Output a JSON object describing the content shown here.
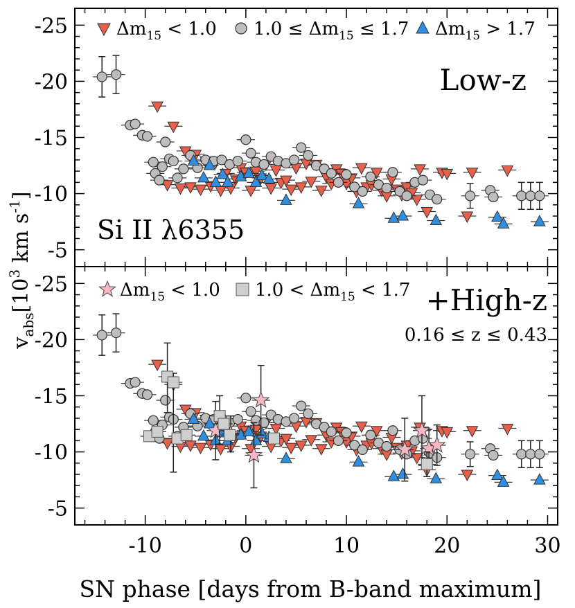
{
  "figure": {
    "ylabel": "v",
    "ylabel_sub": "abs",
    "ylabel_unit": "[10",
    "ylabel_unit_sup": "3",
    "ylabel_unit_rest": " km s",
    "ylabel_unit_sup2": "-1",
    "ylabel_unit_end": "]",
    "xlabel": "SN phase [days from B-band maximum]"
  },
  "chart_data": [
    {
      "type": "scatter",
      "panel": "top",
      "title": "Low-z",
      "annotation": "Si II λ6355",
      "xlim": [
        -17,
        31
      ],
      "ylim": [
        -3.5,
        -26.5
      ],
      "x_ticks": [
        -10,
        0,
        10,
        20,
        30
      ],
      "y_ticks": [
        -25,
        -20,
        -15,
        -10,
        -5
      ],
      "y_tick_labels": [
        "-25",
        "-20",
        "-15",
        "-10",
        "-5"
      ],
      "legend": [
        {
          "marker": "triangle-down",
          "color": "#e8604a",
          "text": "Δm",
          "sub": "15",
          "rest": " < 1.0"
        },
        {
          "marker": "circle",
          "color": "#bdbdbd",
          "text": "1.0 ≤ Δm",
          "sub": "15",
          "rest": " ≤ 1.7"
        },
        {
          "marker": "triangle-up",
          "color": "#2e8fe0",
          "text": "Δm",
          "sub": "15",
          "rest": " > 1.7"
        }
      ],
      "series": [
        {
          "name": "Δm15 < 1.0",
          "marker": "triangle-down",
          "color": "#e8604a",
          "points": [
            [
              -8.8,
              -17.8
            ],
            [
              -7.8,
              -10.8
            ],
            [
              -7.2,
              -16.0
            ],
            [
              -6.5,
              -10.5
            ],
            [
              -6.0,
              -13.8
            ],
            [
              -5.5,
              -10.6
            ],
            [
              -5.0,
              -13.5
            ],
            [
              -4.5,
              -10.4
            ],
            [
              -4.0,
              -12.9
            ],
            [
              -3.5,
              -10.7
            ],
            [
              -3.0,
              -12.8
            ],
            [
              -2.5,
              -10.3
            ],
            [
              -2.0,
              -11.8
            ],
            [
              -1.5,
              -10.5
            ],
            [
              -1.0,
              -11.3
            ],
            [
              -0.5,
              -12.3
            ],
            [
              0.0,
              -11.9
            ],
            [
              0.5,
              -10.3
            ],
            [
              1.0,
              -12.0
            ],
            [
              1.5,
              -11.4
            ],
            [
              2.0,
              -12.6
            ],
            [
              2.5,
              -10.5
            ],
            [
              3.0,
              -12.1
            ],
            [
              3.5,
              -11.0
            ],
            [
              4.0,
              -11.2
            ],
            [
              4.5,
              -10.4
            ],
            [
              5.0,
              -12.3
            ],
            [
              5.5,
              -10.6
            ],
            [
              6.0,
              -12.7
            ],
            [
              6.5,
              -11.1
            ],
            [
              7.0,
              -12.6
            ],
            [
              7.5,
              -10.3
            ],
            [
              8.0,
              -11.5
            ],
            [
              8.5,
              -10.9
            ],
            [
              9.0,
              -12.2
            ],
            [
              9.5,
              -11.8
            ],
            [
              10.0,
              -10.9
            ],
            [
              10.5,
              -11.4
            ],
            [
              11.0,
              -10.2
            ],
            [
              11.5,
              -12.3
            ],
            [
              12.0,
              -10.6
            ],
            [
              12.5,
              -10.8
            ],
            [
              13.0,
              -11.9
            ],
            [
              13.5,
              -10.3
            ],
            [
              14.0,
              -9.8
            ],
            [
              14.5,
              -11.3
            ],
            [
              15.0,
              -10.4
            ],
            [
              15.5,
              -9.9
            ],
            [
              16.0,
              -10.6
            ],
            [
              16.5,
              -10.1
            ],
            [
              17.0,
              -9.5
            ],
            [
              17.3,
              -12.2
            ],
            [
              18.0,
              -8.4
            ],
            [
              19.5,
              -11.9
            ],
            [
              20.0,
              -11.8
            ],
            [
              22.0,
              -8.0
            ],
            [
              22.5,
              -11.9
            ],
            [
              26.0,
              -12.1
            ]
          ]
        },
        {
          "name": "1.0 ≤ Δm15 ≤ 1.7",
          "marker": "circle",
          "color": "#bdbdbd",
          "points": [
            [
              -14.3,
              -20.4
            ],
            [
              -12.9,
              -20.6
            ],
            [
              -11.5,
              -16.1
            ],
            [
              -11.0,
              -16.2
            ],
            [
              -10.3,
              -15.2
            ],
            [
              -9.8,
              -15.1
            ],
            [
              -9.2,
              -12.8
            ],
            [
              -9.0,
              -11.8
            ],
            [
              -8.6,
              -11.2
            ],
            [
              -8.3,
              -12.4
            ],
            [
              -8.0,
              -14.6
            ],
            [
              -7.6,
              -13.1
            ],
            [
              -7.2,
              -12.9
            ],
            [
              -6.8,
              -11.4
            ],
            [
              -6.2,
              -12.2
            ],
            [
              -5.5,
              -13.4
            ],
            [
              -4.8,
              -12.3
            ],
            [
              -4.0,
              -13.0
            ],
            [
              -3.2,
              -12.9
            ],
            [
              -2.4,
              -13.0
            ],
            [
              -1.6,
              -12.6
            ],
            [
              -0.8,
              -12.9
            ],
            [
              0.0,
              -14.8
            ],
            [
              0.5,
              -13.6
            ],
            [
              1.0,
              -12.8
            ],
            [
              1.8,
              -12.6
            ],
            [
              2.5,
              -13.3
            ],
            [
              3.2,
              -12.9
            ],
            [
              4.0,
              -12.7
            ],
            [
              4.8,
              -13.0
            ],
            [
              5.5,
              -14.1
            ],
            [
              6.2,
              -13.4
            ],
            [
              7.0,
              -12.5
            ],
            [
              7.8,
              -12.2
            ],
            [
              8.5,
              -11.8
            ],
            [
              9.2,
              -11.0
            ],
            [
              10.0,
              -11.7
            ],
            [
              10.8,
              -10.6
            ],
            [
              11.6,
              -10.2
            ],
            [
              12.4,
              -11.5
            ],
            [
              13.2,
              -10.8
            ],
            [
              14.0,
              -10.5
            ],
            [
              14.6,
              -11.9
            ],
            [
              15.3,
              -10.2
            ],
            [
              16.0,
              -9.8
            ],
            [
              16.8,
              -11.0
            ],
            [
              17.6,
              -11.2
            ],
            [
              18.3,
              -9.9
            ],
            [
              19.0,
              -9.5
            ],
            [
              22.3,
              -9.8
            ],
            [
              24.3,
              -10.3
            ],
            [
              24.6,
              -9.7
            ],
            [
              27.4,
              -9.8
            ],
            [
              28.3,
              -9.8
            ],
            [
              29.2,
              -9.8
            ]
          ],
          "err_y": [
            [
              -14.3,
              -18.6,
              -22.2
            ],
            [
              -12.9,
              -18.9,
              -22.3
            ],
            [
              22.3,
              -8.7,
              -10.9
            ],
            [
              27.4,
              -8.6,
              -11.0
            ],
            [
              28.3,
              -8.6,
              -11.0
            ],
            [
              29.2,
              -8.6,
              -11.0
            ]
          ]
        },
        {
          "name": "Δm15 > 1.7",
          "marker": "triangle-up",
          "color": "#2e8fe0",
          "points": [
            [
              -5.2,
              -12.9
            ],
            [
              -4.2,
              -11.4
            ],
            [
              -3.6,
              -12.5
            ],
            [
              -3.0,
              -11.0
            ],
            [
              -2.3,
              -11.7
            ],
            [
              -1.8,
              -11.0
            ],
            [
              -0.5,
              -11.5
            ],
            [
              0.3,
              -11.8
            ],
            [
              1.0,
              -11.0
            ],
            [
              1.6,
              -11.6
            ],
            [
              2.3,
              -11.3
            ],
            [
              4.0,
              -9.4
            ],
            [
              11.2,
              -9.1
            ],
            [
              14.7,
              -7.8
            ],
            [
              15.6,
              -8.0
            ],
            [
              18.9,
              -7.6
            ],
            [
              25.0,
              -7.9
            ],
            [
              25.6,
              -7.3
            ],
            [
              29.2,
              -7.5
            ]
          ]
        }
      ]
    },
    {
      "type": "scatter",
      "panel": "bottom",
      "title": "+High-z",
      "annotation": "0.16 ≤ z ≤ 0.43",
      "xlim": [
        -17,
        31
      ],
      "ylim": [
        -3.5,
        -26.5
      ],
      "x_ticks": [
        -10,
        0,
        10,
        20,
        30
      ],
      "x_tick_labels": [
        "-10",
        "0",
        "10",
        "20",
        "30"
      ],
      "y_ticks": [
        -25,
        -20,
        -15,
        -10,
        -5
      ],
      "y_tick_labels": [
        "-25",
        "-20",
        "-15",
        "-10",
        "-5"
      ],
      "legend": [
        {
          "marker": "star",
          "color": "#f7b8c4",
          "text": "Δm",
          "sub": "15",
          "rest": " < 1.0"
        },
        {
          "marker": "square",
          "color": "#cfcfcf",
          "text": "1.0 < Δm",
          "sub": "15",
          "rest": " < 1.7"
        }
      ],
      "series": [
        {
          "name": "High-z Δm15 < 1.0",
          "marker": "star",
          "color": "#f7b8c4",
          "points": [
            [
              -3.0,
              -11.9
            ],
            [
              -1.5,
              -11.6
            ],
            [
              0.8,
              -9.7
            ],
            [
              1.5,
              -14.6
            ],
            [
              15.8,
              -10.2
            ],
            [
              17.5,
              -11.9
            ],
            [
              18.2,
              -10.3
            ],
            [
              19.0,
              -10.6
            ]
          ],
          "err_y": [
            [
              -3.0,
              -9.3,
              -14.5
            ],
            [
              -1.5,
              -10.0,
              -13.2
            ],
            [
              0.8,
              -6.8,
              -12.6
            ],
            [
              1.5,
              -11.5,
              -17.7
            ],
            [
              15.8,
              -7.4,
              -13.0
            ],
            [
              17.5,
              -8.8,
              -15.0
            ],
            [
              18.2,
              -8.6,
              -12.0
            ],
            [
              19.0,
              -8.8,
              -12.4
            ]
          ]
        },
        {
          "name": "High-z 1.0 < Δm15 < 1.7",
          "marker": "square",
          "color": "#cfcfcf",
          "points": [
            [
              -9.6,
              -11.4
            ],
            [
              -8.8,
              -11.8
            ],
            [
              -7.8,
              -16.7
            ],
            [
              -7.2,
              -16.2
            ],
            [
              -6.8,
              -11.2
            ],
            [
              -5.9,
              -11.5
            ],
            [
              -2.6,
              -13.2
            ],
            [
              -2.2,
              -12.5
            ],
            [
              -1.6,
              -11.5
            ],
            [
              2.8,
              -11.2
            ],
            [
              18.0,
              -8.9
            ]
          ],
          "err_y": [
            [
              -7.8,
              -13.5,
              -19.7
            ],
            [
              -7.2,
              -8.2,
              -17.0
            ],
            [
              -2.6,
              -10.7,
              -15.0
            ],
            [
              18.0,
              -7.8,
              -10.0
            ]
          ]
        }
      ],
      "repeated_low_z_series": [
        "Δm15 < 1.0",
        "1.0 ≤ Δm15 ≤ 1.7",
        "Δm15 > 1.7"
      ]
    }
  ]
}
